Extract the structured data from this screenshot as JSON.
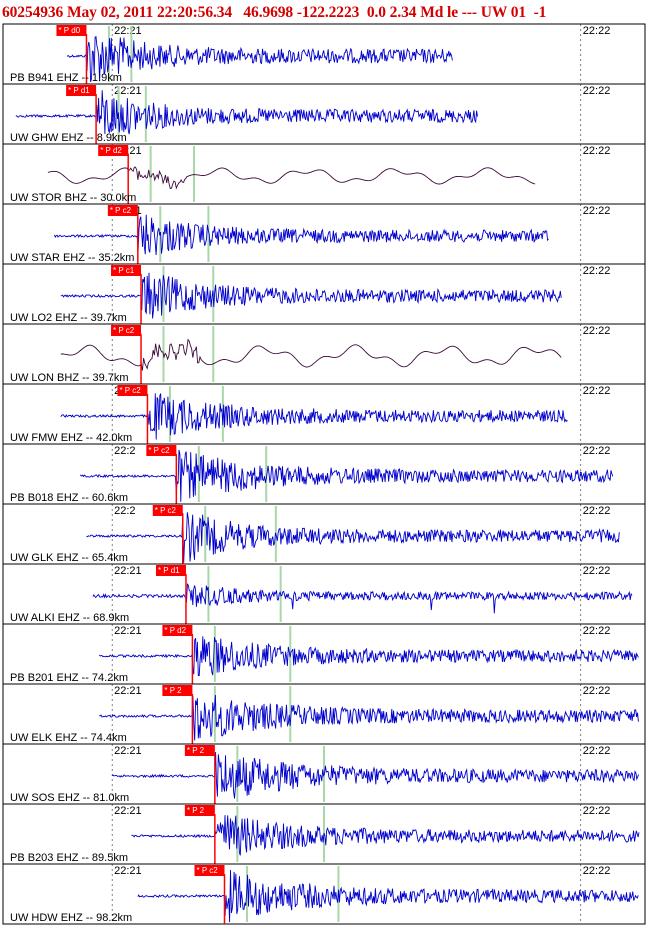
{
  "header": {
    "event_id": "60254936",
    "datetime": "May 02, 2011 22:20:56.34",
    "lat": "46.9698",
    "lon": "-122.2223",
    "depth": "0.0",
    "magnitude": "2.34",
    "mag_type": "Md",
    "quality": "le ---",
    "network": "UW 01",
    "extra": "-1"
  },
  "chart_data": {
    "type": "seismogram-record-section",
    "time_ticks": [
      "22:21",
      "22:22"
    ],
    "colors": {
      "trace_short_period": "#0000cc",
      "trace_broadband": "#3c0a3c",
      "pick": "#ff0000",
      "model_phase": "#a8d8a8",
      "frame": "#000000"
    },
    "traces": [
      {
        "label": "PB B941 EHZ -- 1.9km",
        "network": "PB",
        "station": "B941",
        "channel": "EHZ",
        "distance_km": 1.9,
        "pick": "P d0",
        "tick_label": "22:21",
        "pick_t": 0.13,
        "start_t": 0.1,
        "end_t": 0.7,
        "amp": 1.0,
        "kind": "sp",
        "burst": 0.12
      },
      {
        "label": "UW GHW EHZ -- 8.9km",
        "network": "UW",
        "station": "GHW",
        "channel": "EHZ",
        "distance_km": 8.9,
        "pick": "P d1",
        "tick_label": "22:21",
        "pick_t": 0.145,
        "start_t": 0.02,
        "end_t": 0.74,
        "amp": 0.9,
        "kind": "sp",
        "burst": 0.15
      },
      {
        "label": "UW STOR BHZ -- 30.0km",
        "network": "UW",
        "station": "STOR",
        "channel": "BHZ",
        "distance_km": 30.0,
        "pick": "P d2",
        "tick_label": "22:21",
        "pick_t": 0.195,
        "start_t": 0.07,
        "end_t": 0.83,
        "amp": 0.55,
        "kind": "bb"
      },
      {
        "label": "UW STAR EHZ -- 35.2km",
        "network": "UW",
        "station": "STAR",
        "channel": "EHZ",
        "distance_km": 35.2,
        "pick": "P c2",
        "tick_label": "22:21",
        "pick_t": 0.21,
        "start_t": 0.08,
        "end_t": 0.85,
        "amp": 0.8,
        "kind": "sp",
        "burst": 0.22
      },
      {
        "label": "UW LO2 EHZ -- 39.7km",
        "network": "UW",
        "station": "LO2",
        "channel": "EHZ",
        "distance_km": 39.7,
        "pick": "P c1",
        "tick_label": "22:21",
        "pick_t": 0.215,
        "start_t": 0.09,
        "end_t": 0.87,
        "amp": 0.85,
        "kind": "sp",
        "burst": 0.3
      },
      {
        "label": "UW LON BHZ -- 39.7km",
        "network": "UW",
        "station": "LON",
        "channel": "BHZ",
        "distance_km": 39.7,
        "pick": "P c2",
        "tick_label": "22:21",
        "pick_t": 0.215,
        "start_t": 0.09,
        "end_t": 0.87,
        "amp": 0.75,
        "kind": "bb"
      },
      {
        "label": "UW FMW EHZ -- 42.0km",
        "network": "UW",
        "station": "FMW",
        "channel": "EHZ",
        "distance_km": 42.0,
        "pick": "P c2",
        "tick_label": "22:21",
        "pick_t": 0.225,
        "start_t": 0.09,
        "end_t": 0.88,
        "amp": 0.8,
        "kind": "sp",
        "burst": 0.45
      },
      {
        "label": "PB B018 EHZ -- 60.6km",
        "network": "PB",
        "station": "B018",
        "channel": "EHZ",
        "distance_km": 60.6,
        "pick": "P c2",
        "tick_label": "22:2",
        "pick_t": 0.27,
        "start_t": 0.12,
        "end_t": 0.95,
        "amp": 0.85,
        "kind": "sp",
        "burst": 0.5
      },
      {
        "label": "UW GLK EHZ -- 65.4km",
        "network": "UW",
        "station": "GLK",
        "channel": "EHZ",
        "distance_km": 65.4,
        "pick": "P c2",
        "tick_label": "22:2",
        "pick_t": 0.28,
        "start_t": 0.13,
        "end_t": 0.96,
        "amp": 0.85,
        "kind": "sp",
        "burst": 0.25
      },
      {
        "label": "UW ALKI EHZ -- 68.9km",
        "network": "UW",
        "station": "ALKI",
        "channel": "EHZ",
        "distance_km": 68.9,
        "pick": "P d1",
        "tick_label": "22:21",
        "pick_t": 0.285,
        "start_t": 0.14,
        "end_t": 0.98,
        "amp": 0.6,
        "kind": "noisy"
      },
      {
        "label": "PB B201 EHZ -- 74.2km",
        "network": "PB",
        "station": "B201",
        "channel": "EHZ",
        "distance_km": 74.2,
        "pick": "P d2",
        "tick_label": "22:21",
        "pick_t": 0.295,
        "start_t": 0.15,
        "end_t": 1.0,
        "amp": 0.8,
        "kind": "sp",
        "burst": 0.35
      },
      {
        "label": "UW ELK EHZ -- 74.4km",
        "network": "UW",
        "station": "ELK",
        "channel": "EHZ",
        "distance_km": 74.4,
        "pick": "P 2",
        "tick_label": "22:21",
        "pick_t": 0.295,
        "start_t": 0.15,
        "end_t": 1.0,
        "amp": 0.85,
        "kind": "sp",
        "burst": 0.5
      },
      {
        "label": "UW SOS EHZ -- 81.0km",
        "network": "UW",
        "station": "SOS",
        "channel": "EHZ",
        "distance_km": 81.0,
        "pick": "P 2",
        "tick_label": "22:21",
        "pick_t": 0.33,
        "start_t": 0.17,
        "end_t": 1.03,
        "amp": 0.85,
        "kind": "sp",
        "burst": 0.55
      },
      {
        "label": "PB B203 EHZ -- 89.5km",
        "network": "PB",
        "station": "B203",
        "channel": "EHZ",
        "distance_km": 89.5,
        "pick": "P 2",
        "tick_label": "22:21",
        "pick_t": 0.33,
        "start_t": 0.2,
        "end_t": 1.06,
        "amp": 0.8,
        "kind": "sp",
        "burst": 0.45
      },
      {
        "label": "UW HDW EHZ -- 98.2km",
        "network": "UW",
        "station": "HDW",
        "channel": "EHZ",
        "distance_km": 98.2,
        "pick": "P c2",
        "tick_label": "22:21",
        "pick_t": 0.345,
        "start_t": 0.21,
        "end_t": 1.07,
        "amp": 0.85,
        "kind": "sp",
        "burst": 0.5
      }
    ]
  }
}
